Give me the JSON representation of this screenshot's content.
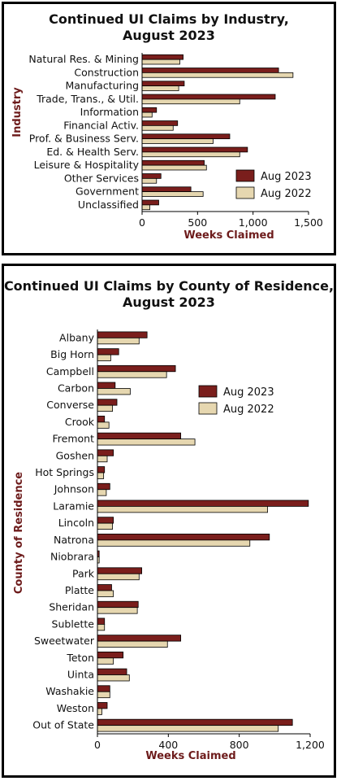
{
  "colors": {
    "aug2023": "#7a1e1c",
    "aug2022": "#e6d7b0",
    "axis_label": "#6d1b1b"
  },
  "chart_data": [
    {
      "type": "bar",
      "orientation": "horizontal",
      "title": [
        "Continued UI Claims by Industry,",
        "August 2023"
      ],
      "xlabel": "Weeks Claimed",
      "ylabel": "Industry",
      "xlim": [
        0,
        1500
      ],
      "xticks": [
        0,
        500,
        1000,
        1500
      ],
      "xtick_labels": [
        "0",
        "500",
        "1,000",
        "1,500"
      ],
      "legend": "lower-right",
      "grid": false,
      "categories": [
        "Natural Res. & Mining",
        "Construction",
        "Manufacturing",
        "Trade, Trans., & Util.",
        "Information",
        "Financial Activ.",
        "Prof. & Business Serv.",
        "Ed. & Health Serv.",
        "Leisure & Hospitality",
        "Other Services",
        "Government",
        "Unclassified"
      ],
      "series": [
        {
          "name": "Aug 2023",
          "values": [
            370,
            1230,
            380,
            1200,
            130,
            320,
            790,
            950,
            560,
            170,
            440,
            150
          ]
        },
        {
          "name": "Aug 2022",
          "values": [
            340,
            1360,
            330,
            880,
            90,
            280,
            640,
            880,
            580,
            130,
            550,
            70
          ]
        }
      ]
    },
    {
      "type": "bar",
      "orientation": "horizontal",
      "title": [
        "Continued UI Claims by County of Residence,",
        "August 2023"
      ],
      "xlabel": "Weeks Claimed",
      "ylabel": "County of Residence",
      "xlim": [
        0,
        1200
      ],
      "xticks": [
        0,
        400,
        800,
        1200
      ],
      "xtick_labels": [
        "0",
        "400",
        "800",
        "1,200"
      ],
      "legend": "upper-right",
      "grid": false,
      "categories": [
        "Albany",
        "Big Horn",
        "Campbell",
        "Carbon",
        "Converse",
        "Crook",
        "Fremont",
        "Goshen",
        "Hot Springs",
        "Johnson",
        "Laramie",
        "Lincoln",
        "Natrona",
        "Niobrara",
        "Park",
        "Platte",
        "Sheridan",
        "Sublette",
        "Sweetwater",
        "Teton",
        "Uinta",
        "Washakie",
        "Weston",
        "Out of State"
      ],
      "series": [
        {
          "name": "Aug 2023",
          "values": [
            280,
            120,
            440,
            100,
            110,
            40,
            470,
            90,
            40,
            70,
            1190,
            90,
            970,
            10,
            250,
            80,
            230,
            40,
            470,
            145,
            165,
            70,
            55,
            1100
          ]
        },
        {
          "name": "Aug 2022",
          "values": [
            235,
            75,
            390,
            185,
            85,
            65,
            550,
            55,
            35,
            50,
            960,
            85,
            860,
            10,
            235,
            90,
            225,
            40,
            395,
            90,
            180,
            70,
            25,
            1020
          ]
        }
      ]
    }
  ]
}
